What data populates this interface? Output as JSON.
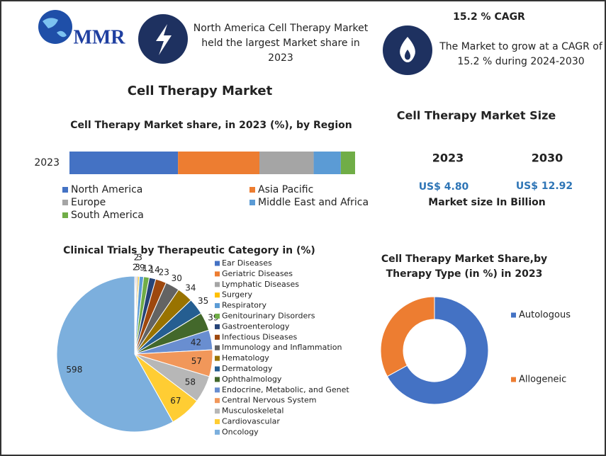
{
  "header": {
    "logo": "MMR",
    "highlight": [
      "North America Cell Therapy Market",
      "held the largest Market share in",
      "2023"
    ],
    "cagr_title": "15.2 % CAGR",
    "cagr_text": [
      "The Market to grow at a CAGR of",
      "15.2 % during 2024-2030"
    ],
    "main_title": "Cell Therapy Market"
  },
  "market_size": {
    "title": "Cell Therapy Market Size",
    "years": [
      "2023",
      "2030"
    ],
    "values": [
      "US$ 4.80",
      "US$ 12.92"
    ],
    "note": "Market size  In Billion"
  },
  "chart_data": [
    {
      "type": "stacked_bar",
      "title": "Cell Therapy Market share, in 2023 (%), by Region",
      "categories": [
        "2023"
      ],
      "xlim": [
        0,
        100
      ],
      "series": [
        {
          "name": "North America",
          "color": "#4472c4",
          "values": [
            38
          ]
        },
        {
          "name": "Asia Pacific",
          "color": "#ed7d31",
          "values": [
            28.5
          ]
        },
        {
          "name": "Europe",
          "color": "#a5a5a5",
          "values": [
            19
          ]
        },
        {
          "name": "Middle East and Africa",
          "color": "#5b9bd5",
          "values": [
            9.5
          ]
        },
        {
          "name": "South America",
          "color": "#70ad47",
          "values": [
            5
          ]
        }
      ]
    },
    {
      "type": "pie",
      "title": "Clinical Trials by Therapeutic Category in (%)",
      "categories": [
        "Ear Diseases",
        "Geriatric Diseases",
        "Lymphatic Diseases",
        "Surgery",
        "Respiratory",
        "Genitourinary Disorders",
        "Gastroenterology",
        "Infectious Diseases",
        "Immunology and Inflammation",
        "Hematology",
        "Dermatology",
        "Ophthalmology",
        "Endocrine, Metabolic, and Genet",
        "Central Nervous System",
        "Musculoskeletal",
        "Cardiovascular",
        "Oncology"
      ],
      "values": [
        2,
        2,
        3,
        3,
        9,
        12,
        14,
        23,
        30,
        34,
        35,
        39,
        42,
        57,
        58,
        67,
        598
      ],
      "colors": [
        "#4472c4",
        "#ed7d31",
        "#a5a5a5",
        "#ffc000",
        "#5b9bd5",
        "#70ad47",
        "#264478",
        "#9e480e",
        "#636363",
        "#997300",
        "#255e91",
        "#43682b",
        "#698ed0",
        "#f1975a",
        "#b7b7b7",
        "#ffcd33",
        "#7cafdd"
      ]
    },
    {
      "type": "donut",
      "title": [
        "Cell Therapy Market Share,by",
        "Therapy Type (in %) in 2023"
      ],
      "categories": [
        "Autologous",
        "Allogeneic"
      ],
      "values": [
        67,
        33
      ],
      "colors": [
        "#4472c4",
        "#ed7d31"
      ]
    }
  ]
}
